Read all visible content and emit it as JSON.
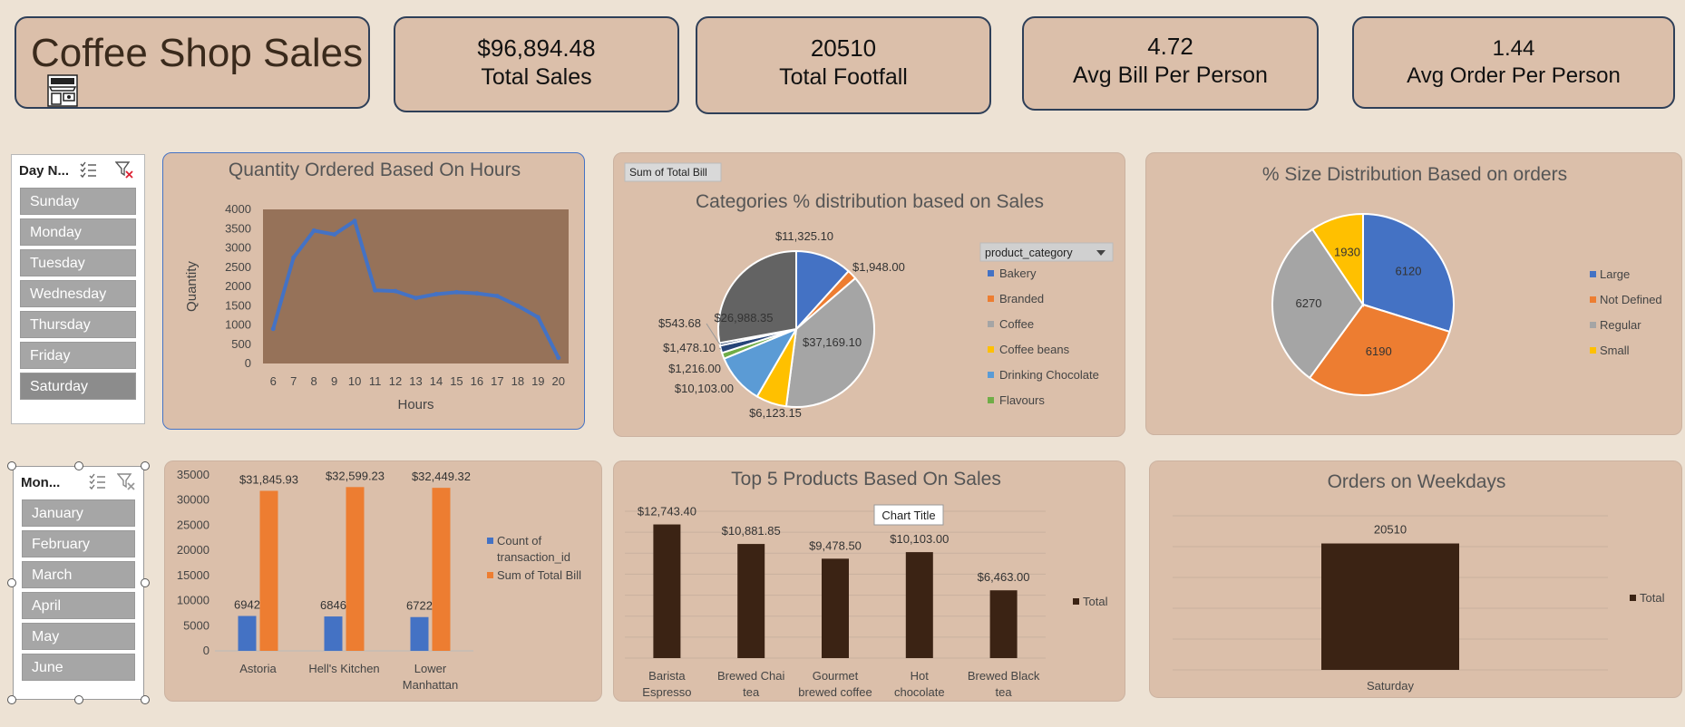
{
  "header": {
    "title": "Coffee Shop Sales",
    "logo_icon": "coffee-shop-icon"
  },
  "kpis": [
    {
      "value": "$96,894.48",
      "label": "Total Sales"
    },
    {
      "value": "20510",
      "label": "Total Footfall"
    },
    {
      "value": "4.72",
      "label": "Avg Bill Per Person"
    },
    {
      "value": "1.44",
      "label": "Avg Order Per Person"
    }
  ],
  "slicers": {
    "day": {
      "name": "Day N...",
      "items": [
        "Sunday",
        "Monday",
        "Tuesday",
        "Wednesday",
        "Thursday",
        "Friday",
        "Saturday"
      ],
      "selected": "Saturday"
    },
    "month": {
      "name": "Mon...",
      "items": [
        "January",
        "February",
        "March",
        "April",
        "May",
        "June"
      ]
    }
  },
  "colors": {
    "blue": "#4472c4",
    "orange": "#ed7d31",
    "gray": "#a5a5a5",
    "gold": "#ffc000",
    "lightblue": "#5b9bd5",
    "green": "#70ad47",
    "navy": "#264478",
    "darkgray": "#636363",
    "brown": "#3b2314",
    "plotbg": "#967259"
  },
  "chart_data": [
    {
      "type": "line",
      "title": "Quantity Ordered Based On Hours",
      "xlabel": "Hours",
      "ylabel": "Quantity",
      "x": [
        6,
        7,
        8,
        9,
        10,
        11,
        12,
        13,
        14,
        15,
        16,
        17,
        18,
        19,
        20
      ],
      "series": [
        {
          "values": [
            900,
            2750,
            3450,
            3350,
            3700,
            1900,
            1880,
            1700,
            1800,
            1850,
            1820,
            1750,
            1500,
            1200,
            150
          ]
        }
      ],
      "yticks": [
        "0",
        "500",
        "1000",
        "1500",
        "2000",
        "2500",
        "3000",
        "3500",
        "4000"
      ],
      "ylim": [
        0,
        4000
      ]
    },
    {
      "type": "pie",
      "title": "Categories % distribution based on Sales",
      "pivot_button": "Sum of Total Bill",
      "filter_label": "product_category",
      "legend": [
        "Bakery",
        "Branded",
        "Coffee",
        "Coffee beans",
        "Drinking Chocolate",
        "Flavours"
      ],
      "slices": [
        {
          "label": "Bakery",
          "value": 11325.1,
          "text": "$11,325.10"
        },
        {
          "label": "Branded",
          "value": 1948.0,
          "text": "$1,948.00"
        },
        {
          "label": "Coffee",
          "value": 37169.1,
          "text": "$37,169.10"
        },
        {
          "label": "Coffee beans",
          "value": 6123.15,
          "text": "$6,123.15"
        },
        {
          "label": "Drinking Chocolate",
          "value": 10103.0,
          "text": "$10,103.00"
        },
        {
          "label": "Flavours",
          "value": 1216.0,
          "text": "$1,216.00"
        },
        {
          "label": "",
          "value": 1478.1,
          "text": "$1,478.10"
        },
        {
          "label": "",
          "value": 543.68,
          "text": "$543.68"
        },
        {
          "label": "",
          "value": 26988.35,
          "text": "$26,988.35"
        }
      ]
    },
    {
      "type": "pie",
      "title": "% Size Distribution Based on orders",
      "legend": [
        "Large",
        "Not Defined",
        "Regular",
        "Small"
      ],
      "slices": [
        {
          "label": "Large",
          "value": 6120,
          "text": "6120"
        },
        {
          "label": "Not Defined",
          "value": 6190,
          "text": "6190"
        },
        {
          "label": "Regular",
          "value": 6270,
          "text": "6270"
        },
        {
          "label": "Small",
          "value": 1930,
          "text": "1930"
        }
      ]
    },
    {
      "type": "bar",
      "categories": [
        "Astoria",
        "Hell's Kitchen",
        "Lower Manhattan"
      ],
      "series": [
        {
          "name": "Count of transaction_id",
          "values": [
            6942,
            6846,
            6722
          ],
          "labels": [
            "6942",
            "6846",
            "6722"
          ]
        },
        {
          "name": "Sum of Total Bill",
          "values": [
            31845.93,
            32599.23,
            32449.32
          ],
          "labels": [
            "$31,845.93",
            "$32,599.23",
            "$32,449.32"
          ]
        }
      ],
      "yticks": [
        "0",
        "5000",
        "10000",
        "15000",
        "20000",
        "25000",
        "30000",
        "35000"
      ],
      "ylim": [
        0,
        35000
      ]
    },
    {
      "type": "bar",
      "title": "Top 5 Products Based On Sales",
      "tooltip": "Chart Title",
      "categories": [
        "Barista Espresso",
        "Brewed Chai tea",
        "Gourmet brewed coffee",
        "Hot chocolate",
        "Brewed Black tea"
      ],
      "series": [
        {
          "name": "Total",
          "values": [
            12743.4,
            10881.85,
            9478.5,
            10103.0,
            6463.0
          ],
          "labels": [
            "$12,743.40",
            "$10,881.85",
            "$9,478.50",
            "$10,103.00",
            "$6,463.00"
          ]
        }
      ],
      "ylim": [
        0,
        14000
      ]
    },
    {
      "type": "bar",
      "title": "Orders on Weekdays",
      "categories": [
        "Saturday"
      ],
      "series": [
        {
          "name": "Total",
          "values": [
            20510
          ],
          "labels": [
            "20510"
          ]
        }
      ],
      "ylim": [
        0,
        25000
      ]
    }
  ]
}
